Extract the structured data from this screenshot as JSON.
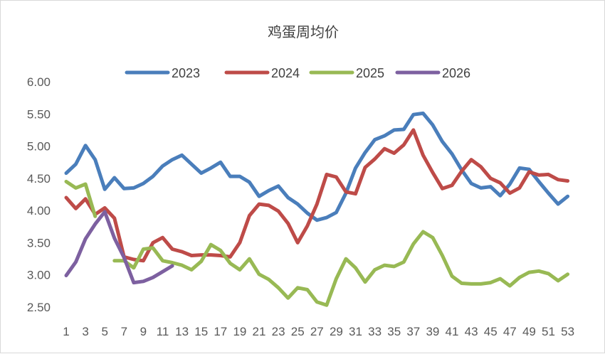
{
  "chart_data": {
    "type": "line",
    "title": "鸡蛋周均价",
    "xlabel": "",
    "ylabel": "",
    "ylim": [
      2.5,
      6.0
    ],
    "yticks": [
      "6.00",
      "5.50",
      "5.00",
      "4.50",
      "4.00",
      "3.50",
      "3.00",
      "2.50"
    ],
    "xticks": [
      "1",
      "3",
      "5",
      "7",
      "9",
      "11",
      "13",
      "15",
      "17",
      "19",
      "21",
      "23",
      "25",
      "27",
      "29",
      "31",
      "33",
      "35",
      "37",
      "39",
      "41",
      "43",
      "45",
      "47",
      "49",
      "51",
      "53"
    ],
    "legend_position": "top",
    "grid": false,
    "series": [
      {
        "name": "2023",
        "color": "#4a7ebb",
        "values": [
          4.58,
          4.72,
          5.01,
          4.79,
          4.33,
          4.51,
          4.34,
          4.35,
          4.42,
          4.53,
          4.69,
          4.79,
          4.86,
          4.72,
          4.58,
          4.66,
          4.75,
          4.53,
          4.53,
          4.44,
          4.22,
          4.31,
          4.38,
          4.2,
          4.1,
          3.96,
          3.85,
          3.89,
          3.97,
          4.27,
          4.66,
          4.9,
          5.1,
          5.16,
          5.25,
          5.26,
          5.49,
          5.51,
          5.33,
          5.07,
          4.88,
          4.63,
          4.42,
          4.35,
          4.37,
          4.23,
          4.41,
          4.66,
          4.64,
          4.45,
          4.27,
          4.1,
          4.22
        ]
      },
      {
        "name": "2024",
        "color": "#be4b48",
        "values": [
          4.2,
          4.03,
          4.18,
          3.94,
          4.04,
          3.88,
          3.28,
          3.24,
          3.22,
          3.5,
          3.58,
          3.4,
          3.36,
          3.3,
          3.31,
          3.31,
          3.3,
          3.28,
          3.5,
          3.92,
          4.1,
          4.08,
          3.99,
          3.8,
          3.5,
          3.76,
          4.1,
          4.56,
          4.52,
          4.29,
          4.26,
          4.67,
          4.8,
          4.96,
          4.89,
          5.02,
          5.25,
          4.86,
          4.59,
          4.34,
          4.39,
          4.61,
          4.79,
          4.68,
          4.5,
          4.43,
          4.27,
          4.35,
          4.6,
          4.55,
          4.56,
          4.48,
          4.46
        ]
      },
      {
        "name": "2025",
        "color": "#98b954",
        "values": [
          4.45,
          4.35,
          4.41,
          3.91,
          null,
          3.22,
          3.22,
          3.11,
          3.4,
          3.42,
          3.22,
          3.19,
          3.15,
          3.08,
          3.21,
          3.47,
          3.38,
          3.18,
          3.08,
          3.25,
          3.01,
          2.93,
          2.8,
          2.64,
          2.8,
          2.77,
          2.58,
          2.53,
          2.94,
          3.25,
          3.11,
          2.89,
          3.08,
          3.15,
          3.13,
          3.2,
          3.48,
          3.67,
          3.58,
          3.3,
          2.98,
          2.87,
          2.86,
          2.86,
          2.88,
          2.94,
          2.83,
          2.96,
          3.04,
          3.06,
          3.02,
          2.91,
          3.01
        ]
      },
      {
        "name": "2026",
        "color": "#7d60a0",
        "values": [
          2.99,
          3.2,
          3.56,
          3.79,
          3.98,
          3.57,
          3.27,
          2.88,
          2.9,
          2.96,
          3.05,
          3.14
        ]
      }
    ]
  }
}
